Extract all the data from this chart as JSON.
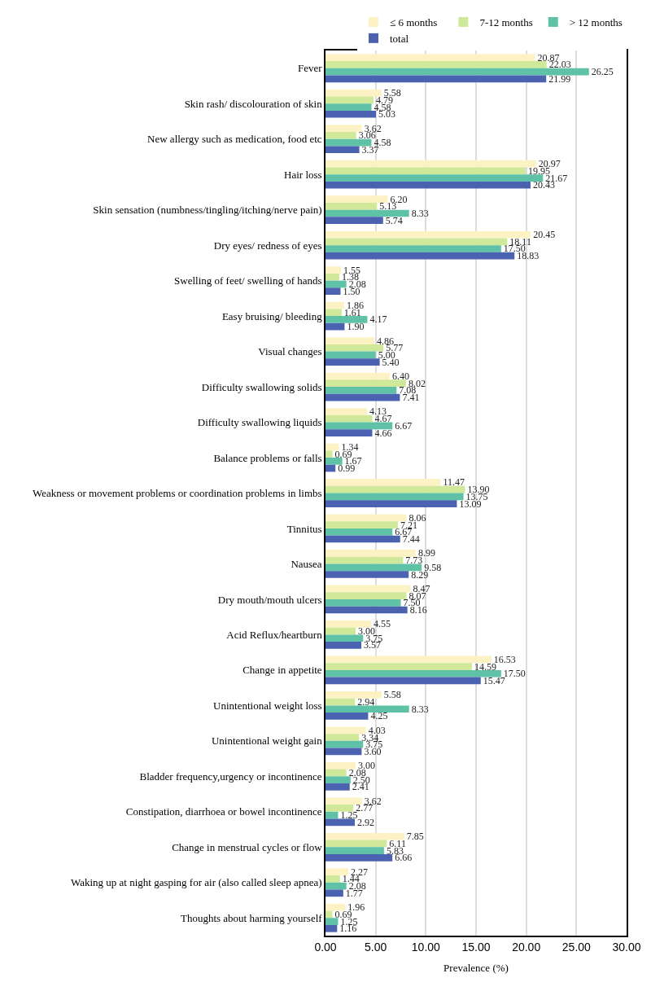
{
  "chart_data": {
    "type": "bar",
    "orientation": "horizontal",
    "xlabel": "Prevalence (%)",
    "categories": [
      "Fever",
      "Skin rash/ discolouration of skin",
      "New allergy such as medication, food etc",
      "Hair loss",
      "Skin sensation (numbness/tingling/itching/nerve pain)",
      "Dry eyes/ redness of eyes",
      "Swelling of feet/ swelling of hands",
      "Easy bruising/ bleeding",
      "Visual changes",
      "Difficulty swallowing solids",
      "Difficulty swallowing liquids",
      "Balance problems or falls",
      "Weakness or movement problems or coordination problems in limbs",
      "Tinnitus",
      "Nausea",
      "Dry mouth/mouth ulcers",
      "Acid Reflux/heartburn",
      "Change in appetite",
      "Unintentional weight loss",
      "Unintentional weight gain",
      "Bladder frequency,urgency or incontinence",
      "Constipation, diarrhoea or bowel incontinence",
      "Change in menstrual cycles or flow",
      "Waking up at night gasping for air (also called sleep apnea)",
      "Thoughts about harming yourself"
    ],
    "series": [
      {
        "name": "≤ 6 months",
        "color": "#fdf2c4",
        "values": [
          20.87,
          5.58,
          3.62,
          20.97,
          6.2,
          20.45,
          1.55,
          1.86,
          4.86,
          6.4,
          4.13,
          1.34,
          11.47,
          8.06,
          8.99,
          8.47,
          4.55,
          16.53,
          5.58,
          4.03,
          3.0,
          3.62,
          7.85,
          2.27,
          1.96
        ],
        "value_labels": [
          "20.87",
          "5.58",
          "3.62",
          "20.97",
          "6.20",
          "20.45",
          "1.55",
          "1.86",
          "4.86",
          "6.40",
          "4.13",
          "1.34",
          "11.47",
          "8.06",
          "8.99",
          "8.47",
          "4.55",
          "16.53",
          "5.58",
          "4.03",
          "3.00",
          "3.62",
          "7.85",
          "2.27",
          "1.96"
        ]
      },
      {
        "name": "7-12 months",
        "color": "#cfe89a",
        "values": [
          22.03,
          4.79,
          3.06,
          19.95,
          5.13,
          18.11,
          1.38,
          1.61,
          5.77,
          8.02,
          4.67,
          0.69,
          13.9,
          7.21,
          7.73,
          8.07,
          3.0,
          14.59,
          2.94,
          3.34,
          2.08,
          2.77,
          6.11,
          1.44,
          0.69
        ],
        "value_labels": [
          "22.03",
          "4.79",
          "3.06",
          "19.95",
          "5.13",
          "18.11",
          "1.38",
          "1.61",
          "5.77",
          "8.02",
          "4.67",
          "0.69",
          "13.90",
          "7.21",
          "7.73",
          "8.07",
          "3.00",
          "14.59",
          "2.94",
          "3.34",
          "2.08",
          "2.77",
          "6.11",
          "1.44",
          "0.69"
        ]
      },
      {
        "name": "> 12 months",
        "color": "#5fc2a6",
        "values": [
          26.25,
          4.58,
          4.58,
          21.67,
          8.33,
          17.5,
          2.08,
          4.17,
          5.0,
          7.08,
          6.67,
          1.67,
          13.75,
          6.67,
          9.58,
          7.5,
          3.75,
          17.5,
          8.33,
          3.75,
          2.5,
          1.25,
          5.83,
          2.08,
          1.25
        ],
        "value_labels": [
          "26.25",
          "4.58",
          "4.58",
          "21.67",
          "8.33",
          "17.50",
          "2.08",
          "4.17",
          "5.00",
          "7.08",
          "6.67",
          "1.67",
          "13.75",
          "6.67",
          "9.58",
          "7.50",
          "3.75",
          "17.50",
          "8.33",
          "3.75",
          "2.50",
          "1.25",
          "5.83",
          "2.08",
          "1.25"
        ]
      },
      {
        "name": "total",
        "color": "#4a62b0",
        "values": [
          21.99,
          5.03,
          3.37,
          20.43,
          5.74,
          18.83,
          1.5,
          1.9,
          5.4,
          7.41,
          4.66,
          0.99,
          13.09,
          7.44,
          8.29,
          8.16,
          3.57,
          15.47,
          4.25,
          3.6,
          2.41,
          2.92,
          6.66,
          1.77,
          1.16
        ],
        "value_labels": [
          "21.99",
          "5.03",
          "3.37",
          "20.43",
          "5.74",
          "18.83",
          "1.50",
          "1.90",
          "5.40",
          "7.41",
          "4.66",
          "0.99",
          "13.09",
          "7.44",
          "8.29",
          "8.16",
          "3.57",
          "15.47",
          "4.25",
          "3.60",
          "2.41",
          "2.92",
          "6.66",
          "1.77",
          "1.16"
        ]
      }
    ],
    "xlim": [
      0,
      30
    ],
    "xticks": [
      {
        "value": 0,
        "label": "0.00"
      },
      {
        "value": 5,
        "label": "5.00"
      },
      {
        "value": 10,
        "label": "10.00"
      },
      {
        "value": 15,
        "label": "15.00"
      },
      {
        "value": 20,
        "label": "20.00"
      },
      {
        "value": 25,
        "label": "25.00"
      },
      {
        "value": 30,
        "label": "30.00"
      }
    ],
    "grid": "x",
    "legend": "top right"
  }
}
